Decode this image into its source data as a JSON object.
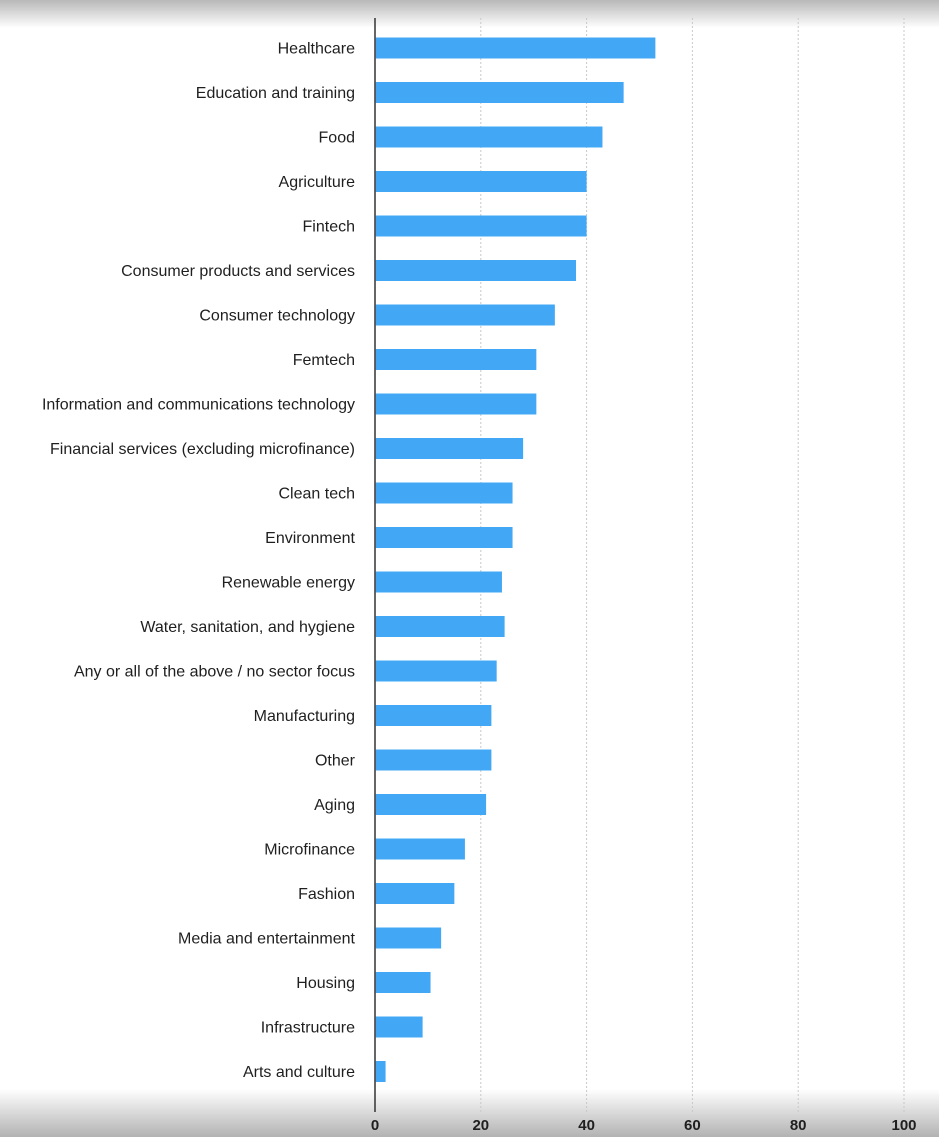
{
  "chart_data": {
    "type": "bar",
    "orientation": "horizontal",
    "title": "",
    "xlabel": "",
    "ylabel": "",
    "xlim": [
      0,
      100
    ],
    "x_ticks": [
      "0",
      "20",
      "40",
      "60",
      "80",
      "100"
    ],
    "grid": true,
    "bar_color": "#42a8f5",
    "categories": [
      "Healthcare",
      "Education and training",
      "Food",
      "Agriculture",
      "Fintech",
      "Consumer products and services",
      "Consumer technology",
      "Femtech",
      "Information and communications technology",
      "Financial services (excluding microfinance)",
      "Clean tech",
      "Environment",
      "Renewable energy",
      "Water, sanitation, and hygiene",
      "Any or all of the above / no sector focus",
      "Manufacturing",
      "Other",
      "Aging",
      "Microfinance",
      "Fashion",
      "Media and entertainment",
      "Housing",
      "Infrastructure",
      "Arts and culture"
    ],
    "values": [
      53,
      47,
      43,
      40,
      40,
      38,
      34,
      30.5,
      30.5,
      28,
      26,
      26,
      24,
      24.5,
      23,
      22,
      22,
      21,
      17,
      15,
      12.5,
      10.5,
      9,
      2
    ]
  }
}
